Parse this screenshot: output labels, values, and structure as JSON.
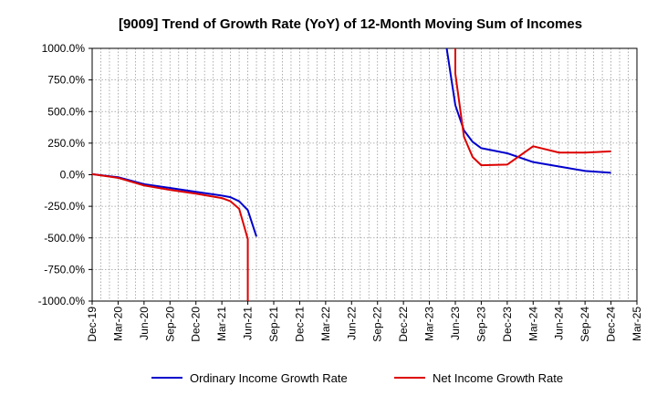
{
  "chart_data": {
    "type": "line",
    "title": "[9009]  Trend of Growth Rate (YoY) of 12-Month Moving Sum of Incomes",
    "xlabel": "",
    "ylabel": "",
    "ylim": [
      -1000,
      1000
    ],
    "y_ticks": [
      "1000.0%",
      "750.0%",
      "500.0%",
      "250.0%",
      "0.0%",
      "-250.0%",
      "-500.0%",
      "-750.0%",
      "-1000.0%"
    ],
    "y_tick_values": [
      1000,
      750,
      500,
      250,
      0,
      -250,
      -500,
      -750,
      -1000
    ],
    "x_ticks": [
      "Dec-19",
      "Mar-20",
      "Jun-20",
      "Sep-20",
      "Dec-20",
      "Mar-21",
      "Jun-21",
      "Sep-21",
      "Dec-21",
      "Mar-22",
      "Jun-22",
      "Sep-22",
      "Dec-22",
      "Mar-23",
      "Jun-23",
      "Sep-23",
      "Dec-23",
      "Mar-24",
      "Jun-24",
      "Sep-24",
      "Dec-24",
      "Mar-25"
    ],
    "grid": true,
    "legend_position": "bottom",
    "series": [
      {
        "name": "Ordinary Income Growth Rate",
        "color": "#0000cc",
        "points": [
          [
            "Dec-19",
            5
          ],
          [
            "Mar-20",
            -20
          ],
          [
            "Jun-20",
            -75
          ],
          [
            "Sep-20",
            -105
          ],
          [
            "Dec-20",
            -135
          ],
          [
            "Mar-21",
            -165
          ],
          [
            "Apr-21",
            -178
          ],
          [
            "May-21",
            -210
          ],
          [
            "Jun-21",
            -280
          ],
          [
            "Jul-21",
            -490
          ]
        ]
      },
      {
        "name": "Ordinary Income Growth Rate",
        "color": "#0000cc",
        "points": [
          [
            "May-23",
            1000
          ],
          [
            "Jun-23",
            550
          ],
          [
            "Jul-23",
            350
          ],
          [
            "Aug-23",
            260
          ],
          [
            "Sep-23",
            210
          ],
          [
            "Dec-23",
            170
          ],
          [
            "Mar-24",
            100
          ],
          [
            "Jun-24",
            65
          ],
          [
            "Sep-24",
            30
          ],
          [
            "Dec-24",
            15
          ]
        ]
      },
      {
        "name": "Net Income Growth Rate",
        "color": "#dd0000",
        "points": [
          [
            "Dec-19",
            5
          ],
          [
            "Mar-20",
            -25
          ],
          [
            "Jun-20",
            -85
          ],
          [
            "Sep-20",
            -120
          ],
          [
            "Dec-20",
            -150
          ],
          [
            "Mar-21",
            -185
          ],
          [
            "Apr-21",
            -210
          ],
          [
            "May-21",
            -270
          ],
          [
            "Jun-21",
            -510
          ],
          [
            "Jun-21",
            -1000
          ]
        ]
      },
      {
        "name": "Net Income Growth Rate",
        "color": "#dd0000",
        "points": [
          [
            "Jun-23",
            1000
          ],
          [
            "Jun-23",
            800
          ],
          [
            "Jul-23",
            300
          ],
          [
            "Aug-23",
            140
          ],
          [
            "Sep-23",
            75
          ],
          [
            "Dec-23",
            80
          ],
          [
            "Mar-24",
            225
          ],
          [
            "Jun-24",
            175
          ],
          [
            "Sep-24",
            175
          ],
          [
            "Dec-24",
            185
          ]
        ]
      }
    ],
    "legend": [
      {
        "label": "Ordinary Income Growth Rate",
        "color": "#0000cc"
      },
      {
        "label": "Net Income Growth Rate",
        "color": "#dd0000"
      }
    ]
  }
}
